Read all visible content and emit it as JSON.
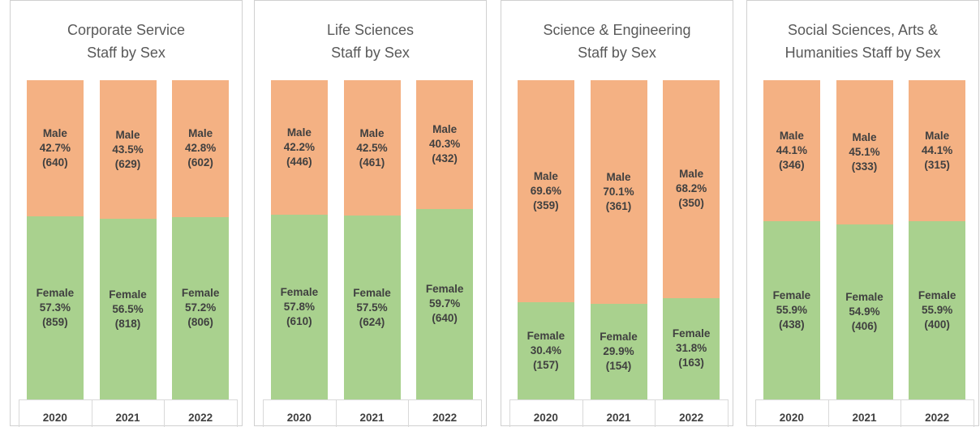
{
  "chart_data": [
    {
      "type": "stacked-bar",
      "title": [
        "Corporate Service",
        "Staff by Sex"
      ],
      "categories": [
        "2020",
        "2021",
        "2022"
      ],
      "ylim": [
        0,
        100
      ],
      "series": [
        {
          "name": "Female",
          "color": "#a9d18e",
          "values": [
            57.3,
            56.5,
            57.2
          ],
          "value_labels": [
            "57.3%",
            "56.5%",
            "57.2%"
          ],
          "count_labels": [
            "(859)",
            "(818)",
            "(806)"
          ]
        },
        {
          "name": "Male",
          "color": "#f4b183",
          "values": [
            42.7,
            43.5,
            42.8
          ],
          "value_labels": [
            "42.7%",
            "43.5%",
            "42.8%"
          ],
          "count_labels": [
            "(640)",
            "(629)",
            "(602)"
          ]
        }
      ]
    },
    {
      "type": "stacked-bar",
      "title": [
        "Life Sciences",
        "Staff by Sex"
      ],
      "categories": [
        "2020",
        "2021",
        "2022"
      ],
      "ylim": [
        0,
        100
      ],
      "series": [
        {
          "name": "Female",
          "color": "#a9d18e",
          "values": [
            57.8,
            57.5,
            59.7
          ],
          "value_labels": [
            "57.8%",
            "57.5%",
            "59.7%"
          ],
          "count_labels": [
            "(610)",
            "(624)",
            "(640)"
          ]
        },
        {
          "name": "Male",
          "color": "#f4b183",
          "values": [
            42.2,
            42.5,
            40.3
          ],
          "value_labels": [
            "42.2%",
            "42.5%",
            "40.3%"
          ],
          "count_labels": [
            "(446)",
            "(461)",
            "(432)"
          ]
        }
      ]
    },
    {
      "type": "stacked-bar",
      "title": [
        "Science & Engineering",
        "Staff by Sex"
      ],
      "categories": [
        "2020",
        "2021",
        "2022"
      ],
      "ylim": [
        0,
        100
      ],
      "series": [
        {
          "name": "Female",
          "color": "#a9d18e",
          "values": [
            30.4,
            29.9,
            31.8
          ],
          "value_labels": [
            "30.4%",
            "29.9%",
            "31.8%"
          ],
          "count_labels": [
            "(157)",
            "(154)",
            "(163)"
          ]
        },
        {
          "name": "Male",
          "color": "#f4b183",
          "values": [
            69.6,
            70.1,
            68.2
          ],
          "value_labels": [
            "69.6%",
            "70.1%",
            "68.2%"
          ],
          "count_labels": [
            "(359)",
            "(361)",
            "(350)"
          ]
        }
      ]
    },
    {
      "type": "stacked-bar",
      "title": [
        "Social Sciences, Arts &",
        "Humanities Staff by Sex"
      ],
      "categories": [
        "2020",
        "2021",
        "2022"
      ],
      "ylim": [
        0,
        100
      ],
      "series": [
        {
          "name": "Female",
          "color": "#a9d18e",
          "values": [
            55.9,
            54.9,
            55.9
          ],
          "value_labels": [
            "55.9%",
            "54.9%",
            "55.9%"
          ],
          "count_labels": [
            "(438)",
            "(406)",
            "(400)"
          ]
        },
        {
          "name": "Male",
          "color": "#f4b183",
          "values": [
            44.1,
            45.1,
            44.1
          ],
          "value_labels": [
            "44.1%",
            "45.1%",
            "44.1%"
          ],
          "count_labels": [
            "(346)",
            "(333)",
            "(315)"
          ]
        }
      ]
    }
  ]
}
